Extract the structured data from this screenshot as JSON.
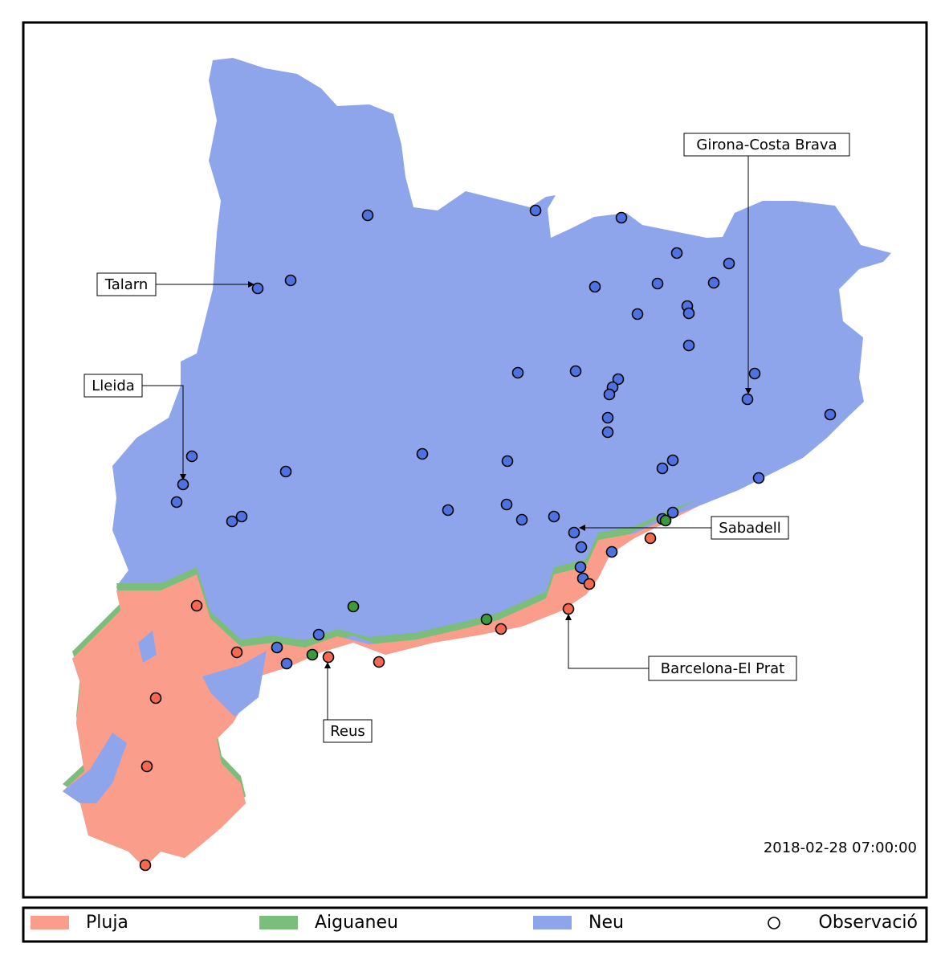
{
  "map": {
    "annotations": [
      "Talarn",
      "Lleida",
      "Girona-Costa Brava",
      "Sabadell",
      "Barcelona-El Prat",
      "Reus"
    ],
    "timestamp": "2018-02-28 07:00:00",
    "legend": [
      {
        "label": "Pluja",
        "color": "#fa9e8b"
      },
      {
        "label": "Aiguaneu",
        "color": "#7bbd7b"
      },
      {
        "label": "Neu",
        "color": "#8ea5ec"
      },
      {
        "label": "Observació"
      }
    ]
  }
}
